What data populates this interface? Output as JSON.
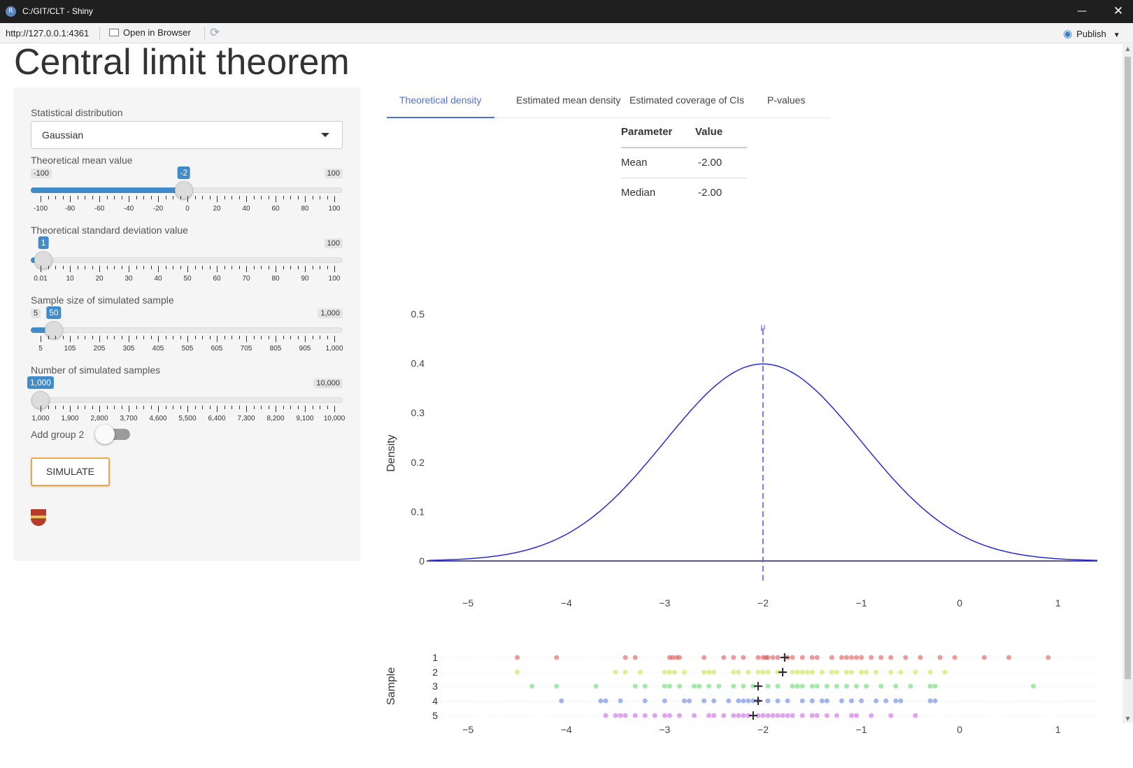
{
  "window": {
    "title": "C:/GIT/CLT - Shiny"
  },
  "toolbar": {
    "url": "http://127.0.0.1:4361",
    "open_browser": "Open in Browser",
    "publish": "Publish"
  },
  "app": {
    "title": "Central limit theorem"
  },
  "distribution": {
    "label": "Statistical distribution",
    "value": "Gaussian"
  },
  "sliders": [
    {
      "label": "Theoretical mean value",
      "min_label": "-100",
      "max_label": "100",
      "current": "-2",
      "frac": 0.49,
      "fill": true,
      "ticks": [
        "-100",
        "-80",
        "-60",
        "-40",
        "-20",
        "0",
        "20",
        "40",
        "60",
        "80",
        "100"
      ]
    },
    {
      "label": "Theoretical standard deviation value",
      "min_label": "",
      "max_label": "100",
      "current": "1",
      "frac": 0.0099,
      "fill": true,
      "ticks": [
        "0.01",
        "10",
        "20",
        "30",
        "40",
        "50",
        "60",
        "70",
        "80",
        "90",
        "100"
      ]
    },
    {
      "label": "Sample size of simulated sample",
      "min_label": "5",
      "max_label": "1,000",
      "current": "50",
      "frac": 0.0452,
      "fill": true,
      "ticks": [
        "5",
        "105",
        "205",
        "305",
        "405",
        "505",
        "605",
        "705",
        "805",
        "905",
        "1,000"
      ]
    },
    {
      "label": "Number of simulated samples",
      "min_label": "",
      "max_label": "10,000",
      "current": "1,000",
      "frac": 0.0,
      "fill": false,
      "ticks": [
        "1,000",
        "1,900",
        "2,800",
        "3,700",
        "4,600",
        "5,500",
        "6,400",
        "7,300",
        "8,200",
        "9,100",
        "10,000"
      ]
    }
  ],
  "toggle": {
    "label": "Add group 2",
    "on": false
  },
  "simulate_button": "SIMULATE",
  "tabs": [
    "Theoretical density",
    "Estimated mean density",
    "Estimated coverage of CIs",
    "P-values"
  ],
  "param_table": {
    "headers": [
      "Parameter",
      "Value"
    ],
    "rows": [
      [
        "Mean",
        "-2.00"
      ],
      [
        "Median",
        "-2.00"
      ]
    ]
  },
  "chart_data": [
    {
      "type": "line",
      "mean": -2,
      "sd": 1,
      "x_range": [
        -5.4,
        1.4
      ],
      "ylim": [
        0,
        0.5
      ],
      "xticks": [
        "−5",
        "−4",
        "−3",
        "−2",
        "−1",
        "0",
        "1"
      ],
      "yticks": [
        "0",
        "0.1",
        "0.2",
        "0.3",
        "0.4",
        "0.5"
      ],
      "ylabel": "Density",
      "mean_line_label": "μ",
      "line_color": "#2a2ad9"
    },
    {
      "type": "scatter",
      "ylabel": "Sample",
      "xticks": [
        "−5",
        "−4",
        "−3",
        "−2",
        "−1",
        "0",
        "1"
      ],
      "series": [
        {
          "label": "1",
          "color": "#e04848",
          "sample_mean": -1.78,
          "values": [
            -4.5,
            -4.1,
            -3.4,
            -3.3,
            -2.95,
            -2.92,
            -2.88,
            -2.85,
            -2.6,
            -2.4,
            -2.3,
            -2.2,
            -2.05,
            -2.0,
            -1.97,
            -1.95,
            -1.9,
            -1.85,
            -1.75,
            -1.7,
            -1.6,
            -1.5,
            -1.45,
            -1.3,
            -1.2,
            -1.15,
            -1.1,
            -1.05,
            -1.0,
            -0.9,
            -0.8,
            -0.7,
            -0.55,
            -0.4,
            -0.2,
            -0.05,
            0.25,
            0.5,
            0.9
          ]
        },
        {
          "label": "2",
          "color": "#c8e03a",
          "sample_mean": -1.8,
          "values": [
            -4.5,
            -3.5,
            -3.4,
            -3.25,
            -3.0,
            -2.95,
            -2.9,
            -2.8,
            -2.6,
            -2.55,
            -2.5,
            -2.3,
            -2.25,
            -2.15,
            -2.05,
            -2.0,
            -1.95,
            -1.85,
            -1.7,
            -1.65,
            -1.6,
            -1.55,
            -1.5,
            -1.4,
            -1.3,
            -1.25,
            -1.15,
            -1.1,
            -1.0,
            -0.95,
            -0.85,
            -0.7,
            -0.6,
            -0.45,
            -0.3,
            -0.15
          ]
        },
        {
          "label": "3",
          "color": "#5ad860",
          "sample_mean": -2.05,
          "values": [
            -4.35,
            -4.1,
            -3.7,
            -3.3,
            -3.2,
            -3.0,
            -2.95,
            -2.85,
            -2.7,
            -2.65,
            -2.55,
            -2.45,
            -2.3,
            -2.2,
            -2.1,
            -1.95,
            -1.85,
            -1.7,
            -1.65,
            -1.6,
            -1.5,
            -1.45,
            -1.35,
            -1.25,
            -1.15,
            -1.05,
            -0.95,
            -0.8,
            -0.65,
            -0.5,
            -0.3,
            -0.25,
            0.75
          ]
        },
        {
          "label": "4",
          "color": "#5a78e0",
          "sample_mean": -2.05,
          "values": [
            -4.05,
            -3.65,
            -3.6,
            -3.45,
            -3.2,
            -3.0,
            -2.8,
            -2.75,
            -2.6,
            -2.5,
            -2.35,
            -2.25,
            -2.2,
            -2.15,
            -2.1,
            -2.05,
            -1.95,
            -1.85,
            -1.75,
            -1.6,
            -1.5,
            -1.4,
            -1.35,
            -1.2,
            -1.1,
            -1.0,
            -0.85,
            -0.75,
            -0.65,
            -0.6,
            -0.3,
            -0.25
          ]
        },
        {
          "label": "5",
          "color": "#c85ae0",
          "sample_mean": -2.1,
          "values": [
            -3.6,
            -3.5,
            -3.45,
            -3.4,
            -3.3,
            -3.2,
            -3.1,
            -3.0,
            -2.95,
            -2.85,
            -2.7,
            -2.55,
            -2.5,
            -2.4,
            -2.3,
            -2.25,
            -2.2,
            -2.15,
            -2.05,
            -2.0,
            -1.95,
            -1.9,
            -1.85,
            -1.8,
            -1.75,
            -1.7,
            -1.6,
            -1.5,
            -1.45,
            -1.35,
            -1.25,
            -1.1,
            -1.05,
            -0.9,
            -0.7,
            -0.45
          ]
        }
      ]
    }
  ]
}
